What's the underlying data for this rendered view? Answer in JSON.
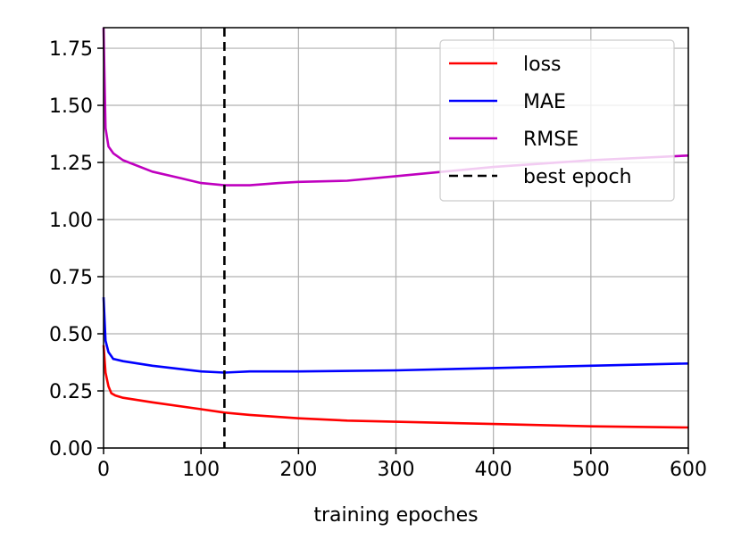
{
  "chart_data": {
    "type": "line",
    "title": "",
    "xlabel": "training epoches",
    "ylabel": "",
    "xlim": [
      0,
      600
    ],
    "ylim": [
      0,
      1.84
    ],
    "x_ticks": [
      0,
      100,
      200,
      300,
      400,
      500,
      600
    ],
    "x_tick_labels": [
      "0",
      "100",
      "200",
      "300",
      "400",
      "500",
      "600"
    ],
    "y_ticks": [
      0,
      0.25,
      0.5,
      0.75,
      1.0,
      1.25,
      1.5,
      1.75
    ],
    "y_tick_labels": [
      "0.00",
      "0.25",
      "0.50",
      "0.75",
      "1.00",
      "1.25",
      "1.50",
      "1.75"
    ],
    "grid": true,
    "legend_position": "top-right",
    "series": [
      {
        "name": "loss",
        "color": "#ff0000",
        "x": [
          0,
          2,
          5,
          8,
          12,
          20,
          50,
          100,
          124,
          150,
          200,
          250,
          300,
          400,
          500,
          600
        ],
        "y": [
          0.45,
          0.33,
          0.27,
          0.24,
          0.23,
          0.22,
          0.2,
          0.17,
          0.155,
          0.145,
          0.13,
          0.12,
          0.115,
          0.105,
          0.095,
          0.09
        ]
      },
      {
        "name": "MAE",
        "color": "#0000ff",
        "x": [
          0,
          2,
          5,
          10,
          20,
          50,
          100,
          124,
          150,
          200,
          300,
          400,
          500,
          600
        ],
        "y": [
          0.66,
          0.47,
          0.42,
          0.39,
          0.38,
          0.36,
          0.335,
          0.33,
          0.335,
          0.335,
          0.34,
          0.35,
          0.36,
          0.37
        ]
      },
      {
        "name": "RMSE",
        "color": "#bf00bf",
        "x": [
          0,
          2,
          5,
          10,
          20,
          50,
          80,
          100,
          124,
          150,
          180,
          200,
          250,
          300,
          400,
          500,
          600
        ],
        "y": [
          1.84,
          1.4,
          1.32,
          1.29,
          1.26,
          1.21,
          1.18,
          1.16,
          1.15,
          1.15,
          1.16,
          1.165,
          1.17,
          1.19,
          1.23,
          1.26,
          1.28
        ]
      }
    ],
    "markers": [
      {
        "name": "best epoch",
        "x": 124,
        "color": "#000000",
        "style": "dashed"
      }
    ],
    "legend": [
      {
        "label": "loss",
        "color": "#ff0000",
        "style": "solid"
      },
      {
        "label": "MAE",
        "color": "#0000ff",
        "style": "solid"
      },
      {
        "label": "RMSE",
        "color": "#bf00bf",
        "style": "solid"
      },
      {
        "label": "best epoch",
        "color": "#000000",
        "style": "dashed"
      }
    ]
  }
}
